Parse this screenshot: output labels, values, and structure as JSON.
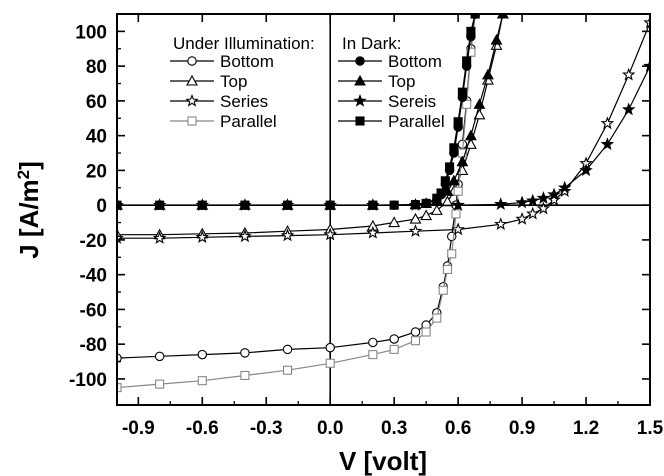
{
  "chart_data": {
    "type": "line",
    "xlabel": "V [volt]",
    "ylabel_main": "J [A/m",
    "ylabel_sup": "2",
    "ylabel_close": "]",
    "xlim": [
      -1.0,
      1.5
    ],
    "ylim": [
      -115,
      110
    ],
    "xticks": [
      -0.9,
      -0.6,
      -0.3,
      0.0,
      0.3,
      0.6,
      0.9,
      1.2,
      1.5
    ],
    "xtick_labels": [
      "-0.9",
      "-0.6",
      "-0.3",
      "0.0",
      "0.3",
      "0.6",
      "0.9",
      "1.2",
      "1.5"
    ],
    "yticks": [
      -100,
      -80,
      -60,
      -40,
      -20,
      0,
      20,
      40,
      60,
      80,
      100
    ],
    "ytick_labels": [
      "-100",
      "-80",
      "-60",
      "-40",
      "-20",
      "0",
      "20",
      "40",
      "60",
      "80",
      "100"
    ],
    "grid": false,
    "legend": {
      "placement": "top-left",
      "group1_title": "Under Illumination:",
      "group2_title": "In Dark:"
    },
    "series": [
      {
        "name": "Bottom",
        "group": "Under Illumination",
        "marker": "circle",
        "fill": "open",
        "x": [
          -1.0,
          -0.8,
          -0.6,
          -0.4,
          -0.2,
          0.0,
          0.2,
          0.3,
          0.4,
          0.45,
          0.5,
          0.53,
          0.55,
          0.57,
          0.59,
          0.6,
          0.62,
          0.64,
          0.66,
          0.68
        ],
        "y": [
          -88,
          -87,
          -86,
          -85,
          -83,
          -82,
          -79,
          -77,
          -73,
          -69,
          -62,
          -47,
          -35,
          -18,
          0,
          12,
          35,
          60,
          90,
          110
        ]
      },
      {
        "name": "Top",
        "group": "Under Illumination",
        "marker": "triangle",
        "fill": "open",
        "x": [
          -1.0,
          -0.8,
          -0.6,
          -0.4,
          -0.2,
          0.0,
          0.2,
          0.3,
          0.4,
          0.45,
          0.5,
          0.55,
          0.58,
          0.62,
          0.66,
          0.7,
          0.74,
          0.78,
          0.81
        ],
        "y": [
          -17,
          -17,
          -16.5,
          -16,
          -15,
          -14,
          -12,
          -10,
          -8,
          -6,
          -3,
          2,
          8,
          20,
          35,
          52,
          72,
          92,
          110
        ]
      },
      {
        "name": "Series",
        "group": "Under Illumination",
        "marker": "star",
        "fill": "open",
        "x": [
          -1.0,
          -0.8,
          -0.6,
          -0.4,
          -0.2,
          0.0,
          0.2,
          0.4,
          0.6,
          0.8,
          0.9,
          0.95,
          1.0,
          1.05,
          1.1,
          1.2,
          1.3,
          1.4,
          1.5
        ],
        "y": [
          -19,
          -19,
          -18.5,
          -18,
          -17.5,
          -17,
          -16,
          -15,
          -14,
          -11,
          -8,
          -5,
          -2,
          3,
          8,
          24,
          47,
          75,
          105
        ]
      },
      {
        "name": "Parallel",
        "group": "Under Illumination",
        "marker": "square",
        "fill": "open",
        "color": "#888888",
        "x": [
          -1.0,
          -0.8,
          -0.6,
          -0.4,
          -0.2,
          0.0,
          0.2,
          0.3,
          0.4,
          0.45,
          0.5,
          0.53,
          0.55,
          0.57,
          0.59,
          0.6,
          0.62,
          0.64,
          0.66,
          0.68
        ],
        "y": [
          -105,
          -103,
          -101,
          -98,
          -95,
          -91,
          -86,
          -83,
          -78,
          -73,
          -65,
          -49,
          -37,
          -28,
          -5,
          8,
          30,
          58,
          88,
          110
        ]
      },
      {
        "name": "Bottom",
        "group": "In Dark",
        "marker": "circle",
        "fill": "filled",
        "x": [
          -1.0,
          -0.8,
          -0.6,
          -0.4,
          -0.2,
          0.0,
          0.2,
          0.3,
          0.4,
          0.45,
          0.5,
          0.52,
          0.54,
          0.56,
          0.58,
          0.6,
          0.62,
          0.64,
          0.66,
          0.68
        ],
        "y": [
          0,
          0,
          0,
          0,
          0,
          0,
          0,
          0,
          0.3,
          1,
          3,
          6,
          12,
          20,
          30,
          45,
          62,
          80,
          97,
          110
        ]
      },
      {
        "name": "Top",
        "group": "In Dark",
        "marker": "triangle",
        "fill": "filled",
        "x": [
          -1.0,
          -0.8,
          -0.6,
          -0.4,
          -0.2,
          0.0,
          0.2,
          0.4,
          0.45,
          0.5,
          0.55,
          0.58,
          0.62,
          0.66,
          0.7,
          0.74,
          0.78,
          0.81
        ],
        "y": [
          0,
          0,
          0,
          0,
          0,
          0,
          0,
          0.3,
          1,
          3,
          8,
          14,
          25,
          40,
          58,
          75,
          95,
          110
        ]
      },
      {
        "name": "Sereis",
        "group": "In Dark",
        "marker": "star",
        "fill": "filled",
        "x": [
          -1.0,
          -0.8,
          -0.6,
          -0.4,
          -0.2,
          0.0,
          0.2,
          0.4,
          0.6,
          0.8,
          0.9,
          0.95,
          1.0,
          1.05,
          1.1,
          1.2,
          1.3,
          1.4,
          1.5
        ],
        "y": [
          0,
          0,
          0,
          0,
          0,
          0,
          0,
          0,
          0,
          0.5,
          1.5,
          2.5,
          4,
          6,
          10,
          20,
          35,
          55,
          80
        ]
      },
      {
        "name": "Parallel",
        "group": "In Dark",
        "marker": "square",
        "fill": "filled",
        "x": [
          -1.0,
          -0.8,
          -0.6,
          -0.4,
          -0.2,
          0.0,
          0.2,
          0.3,
          0.4,
          0.45,
          0.5,
          0.52,
          0.54,
          0.56,
          0.58,
          0.6,
          0.62,
          0.64,
          0.66,
          0.68
        ],
        "y": [
          0,
          0,
          0,
          0,
          0,
          0,
          0,
          0,
          0.3,
          1,
          4,
          7,
          14,
          22,
          33,
          48,
          65,
          83,
          100,
          110
        ]
      }
    ]
  }
}
